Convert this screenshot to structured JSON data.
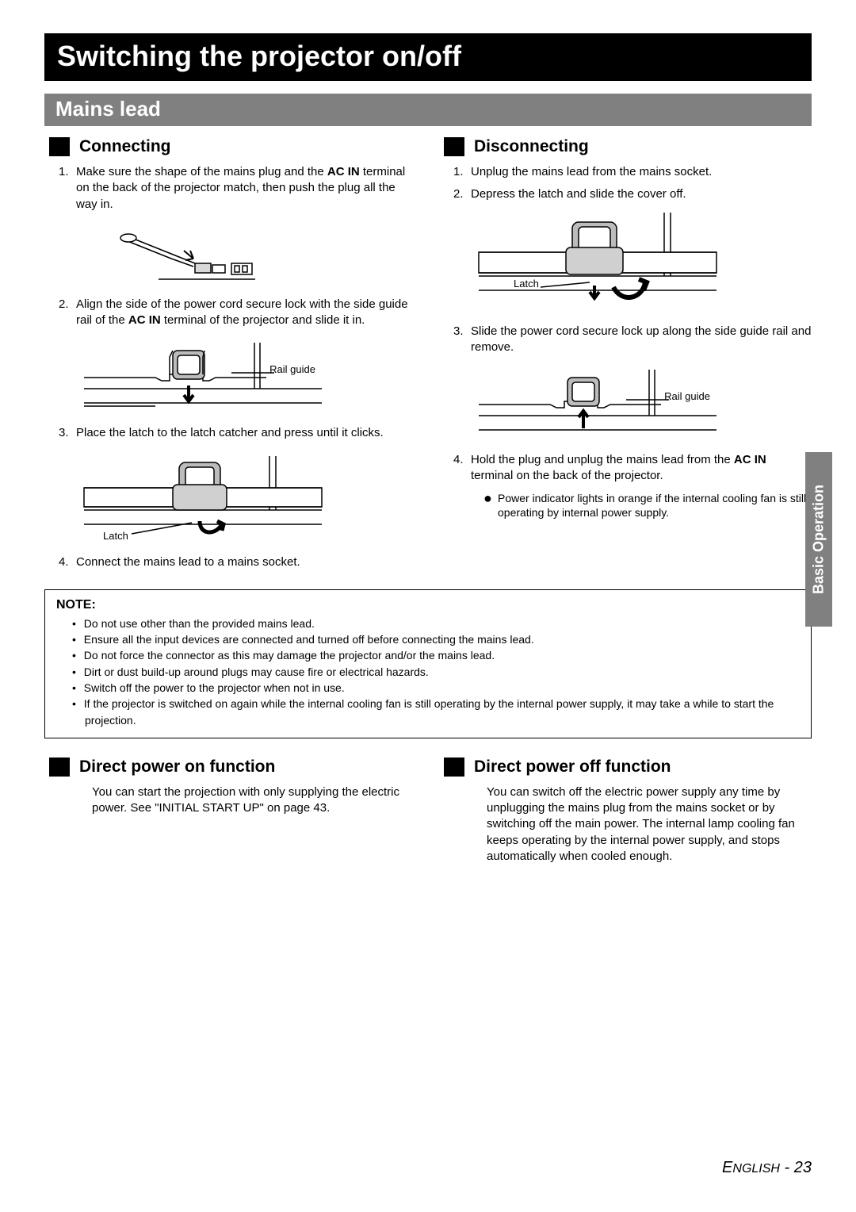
{
  "title": "Switching the projector on/off",
  "section": "Mains lead",
  "side_tab": "Basic Operation",
  "connecting": {
    "heading": "Connecting",
    "steps": [
      "Make sure the shape of the mains plug and the <b>AC IN</b> terminal on the back of the projector match, then push the plug all the way in.",
      "Align the side of the power cord secure lock with the side guide rail of the <b>AC IN</b> terminal of the projector and slide it in.",
      "Place the latch to the latch catcher and press until it clicks.",
      "Connect the mains lead to a mains socket."
    ],
    "fig_labels": {
      "rail_guide": "Rail guide",
      "latch": "Latch"
    }
  },
  "disconnecting": {
    "heading": "Disconnecting",
    "steps": [
      "Unplug the mains lead from the mains socket.",
      "Depress the latch and slide the cover off.",
      "Slide the power cord secure lock up along the side guide rail and remove.",
      "Hold the plug and unplug the mains lead from the <b>AC IN</b> terminal on the back of the projector."
    ],
    "sub_bullet": "Power indicator lights in orange if the internal cooling fan is still operating by internal power supply.",
    "fig_labels": {
      "rail_guide": "Rail guide",
      "latch": "Latch"
    }
  },
  "note": {
    "title": "NOTE:",
    "items": [
      "Do not use other than the provided mains lead.",
      "Ensure all the input devices are connected and turned off before connecting the mains lead.",
      "Do not force the connector as this may damage the projector and/or the mains lead.",
      "Dirt or dust build-up around plugs may cause fire or electrical hazards.",
      "Switch off the power to the projector when not in use.",
      "If the projector is switched on again while the internal cooling fan is still operating by the internal power supply, it may take a while to start the projection."
    ]
  },
  "power_on": {
    "heading": "Direct power on function",
    "text": "You can start the projection with only supplying the electric power. See \"INITIAL START UP\" on page 43."
  },
  "power_off": {
    "heading": "Direct power off function",
    "text": "You can switch off the electric power supply any time by unplugging the mains plug from the mains socket or by switching off the main power. The internal lamp cooling fan keeps operating by the internal power supply, and stops automatically when cooled enough."
  },
  "footer": {
    "lang": "English",
    "page": "23"
  },
  "colors": {
    "title_bg": "#000000",
    "section_bg": "#808080",
    "text": "#000000",
    "page_bg": "#ffffff"
  }
}
